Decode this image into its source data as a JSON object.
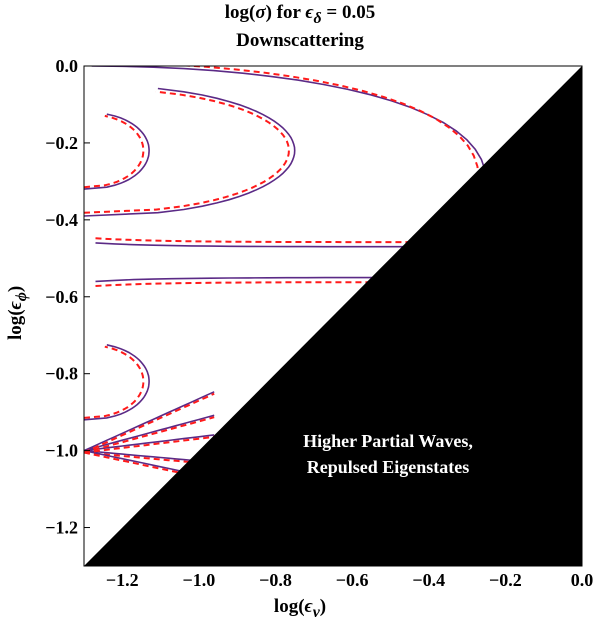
{
  "chart_data": {
    "type": "contour",
    "title_line1_html": "log(<i>σ</i>) for <i>ϵ</i><sub><i>δ</i></sub> = 0.05",
    "title_line2": "Downscattering",
    "xlabel_html": "log(<i>ϵ</i><sub><i>ν</i></sub>)",
    "ylabel_html": "log(<i>ϵ</i><sub><i>ϕ</i></sub>)",
    "xlim": [
      -1.3,
      0.0
    ],
    "ylim": [
      -1.3,
      0.0
    ],
    "x_ticks": [
      "-1.2",
      "-1.0",
      "-0.8",
      "-0.6",
      "-0.4",
      "-0.2",
      "0.0"
    ],
    "x_tick_values": [
      -1.2,
      -1.0,
      -0.8,
      -0.6,
      -0.4,
      -0.2,
      0.0
    ],
    "y_ticks": [
      "0.0",
      "-0.2",
      "-0.4",
      "-0.6",
      "-0.8",
      "-1.0",
      "-1.2"
    ],
    "y_tick_values": [
      0.0,
      -0.2,
      -0.4,
      -0.6,
      -0.8,
      -1.0,
      -1.2
    ],
    "excluded_region": {
      "shape": "triangle above diagonal log(eps_nu) = log(eps_phi)",
      "vertices": [
        [
          0.0,
          0.0
        ],
        [
          0.0,
          -1.3
        ],
        [
          -1.3,
          -1.3
        ]
      ],
      "color": "#000000",
      "label_line1": "Higher Partial Waves,",
      "label_line2": "Repulsed Eigenstates"
    },
    "series": [
      {
        "style": "solid",
        "color": "#5b2a86"
      },
      {
        "style": "dashed",
        "color": "#ff1a1a"
      }
    ],
    "contours": [
      {
        "kind": "tongue",
        "y_center": -0.22,
        "tip_x": -1.13,
        "lobe": "small"
      },
      {
        "kind": "tongue",
        "y_center": -0.22,
        "tip_x": -0.75,
        "lobe": "large"
      },
      {
        "kind": "tongue",
        "y_center": -0.82,
        "tip_x": -1.13,
        "lobe": "small"
      },
      {
        "kind": "arch",
        "y_center": -0.1,
        "tip_x": -0.25
      },
      {
        "kind": "band",
        "y_top": -0.47,
        "y_bottom": -0.55
      },
      {
        "kind": "fan",
        "y_center": -1.0
      }
    ],
    "grid": false
  }
}
